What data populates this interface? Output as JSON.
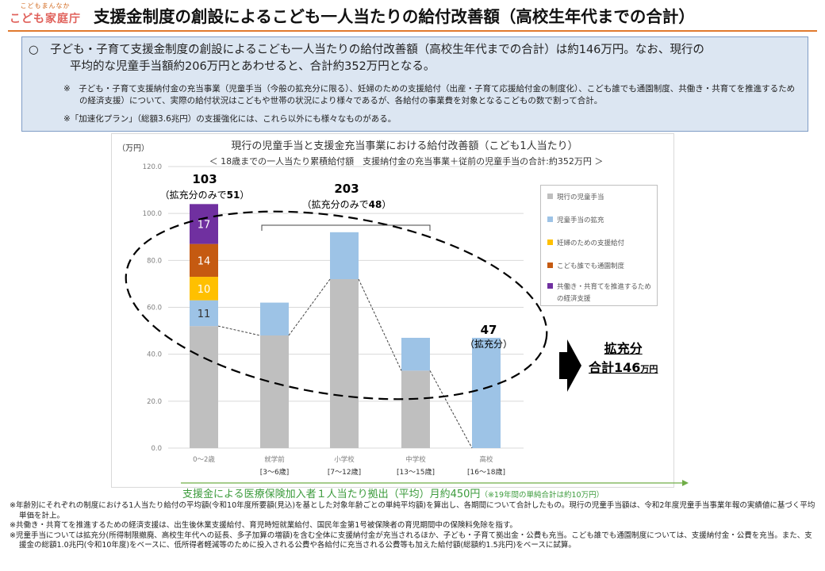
{
  "logo": {
    "small": "こどもまんなか",
    "big": "こども家庭庁"
  },
  "title": "支援金制度の創設によるこども一人当たりの給付改善額（高校生年代までの合計）",
  "summary": {
    "main_a": "○　子ども・子育て支援金制度の創設によるこども一人当たりの給付改善額（高校生年代までの合計）は約146万円。なお、現行の",
    "main_b": "平均的な児童手当額約206万円とあわせると、合計約352万円となる。",
    "note1": "※　子ども・子育て支援納付金の充当事業（児童手当（今般の拡充分に限る）、妊婦のための支援給付（出産・子育て応援給付金の制度化）、こども誰でも通園制度、共働き・共育てを推進するための経済支援）について、実際の給付状況はこどもや世帯の状況により様々であるが、各給付の事業費を対象となるこどもの数で割って合計。",
    "note2": "※「加速化プラン」（総額3.6兆円）の支援強化には、これら以外にも様々なものがある。"
  },
  "chart_data": {
    "type": "bar",
    "title": "現行の児童手当と支援金充当事業における給付改善額（こども1人当たり）",
    "subtitle": "＜ 18歳までの一人当たり累積給付額　支援納付金の充当事業＋従前の児童手当の合計:約352万円 ＞",
    "ylabel": "（万円）",
    "ylim": [
      0,
      120
    ],
    "yticks": [
      "0.0",
      "20.0",
      "40.0",
      "60.0",
      "80.0",
      "100.0",
      "120.0"
    ],
    "categories": [
      "0〜2歳",
      "就学前",
      "小学校",
      "中学校",
      "高校"
    ],
    "category_ranges": [
      "",
      "[3〜6歳]",
      "[7〜12歳]",
      "[13〜15歳]",
      "[16〜18歳]"
    ],
    "series": [
      {
        "name": "現行の児童手当",
        "color": "#bfbfbf",
        "values": [
          52,
          48,
          72,
          33,
          0
        ]
      },
      {
        "name": "児童手当の拡充",
        "color": "#9dc3e6",
        "values": [
          11,
          14,
          20,
          14,
          47
        ]
      },
      {
        "name": "妊婦のための支援給付",
        "color": "#ffc000",
        "values": [
          10,
          0,
          0,
          0,
          0
        ]
      },
      {
        "name": "こども誰でも通園制度",
        "color": "#c55a11",
        "values": [
          14,
          0,
          0,
          0,
          0
        ]
      },
      {
        "name": "共働き・共育てを推進するための経済支援",
        "color": "#7030a0",
        "values": [
          17,
          0,
          0,
          0,
          0
        ]
      }
    ],
    "segment_labels": [
      "11",
      "10",
      "14",
      "17"
    ],
    "annotations": {
      "a1_value": "103",
      "a1_text": "（拡充分のみで",
      "a1_bold": "51",
      "a1_close": "）",
      "a2_value": "203",
      "a2_text": "（拡充分のみで",
      "a2_bold": "48",
      "a2_close": "）",
      "a3_value": "47",
      "a3_text": "（拡充分）"
    }
  },
  "summary_box": {
    "line1": "拡充分",
    "line2": "合計146",
    "unit": "万円"
  },
  "footer": {
    "text": "支援金による医療保険加入者１人当たり拠出（平均）月約450円",
    "small": "（※19年間の単純合計は約10万円）"
  },
  "footnotes": [
    "※年齢別にそれぞれの制度における1人当たり給付の平均額(令和10年度所要額(見込)を基とした対象年齢ごとの単純平均額)を算出し、各期間について合計したもの。現行の児童手当額は、令和2年度児童手当事業年報の実績値に基づく平均単価を計上。",
    "※共働き・共育てを推進するための経済支援は、出生後休業支援給付、育児時短就業給付、国民年金第1号被保険者の育児期間中の保険料免除を指す。",
    "※児童手当については拡充分(所得制限撤廃、高校生年代への延長、多子加算の増額)を含む全体に支援納付金が充当されるほか、子ども・子育て拠出金・公費も充当。こども誰でも通園制度については、支援納付金・公費を充当。また、支援金の総額1.0兆円(令和10年度)をベースに、低所得者軽減等のために投入される公費や各給付に充当される公費等も加えた給付額(総額約1.5兆円)をベースに試算。"
  ]
}
